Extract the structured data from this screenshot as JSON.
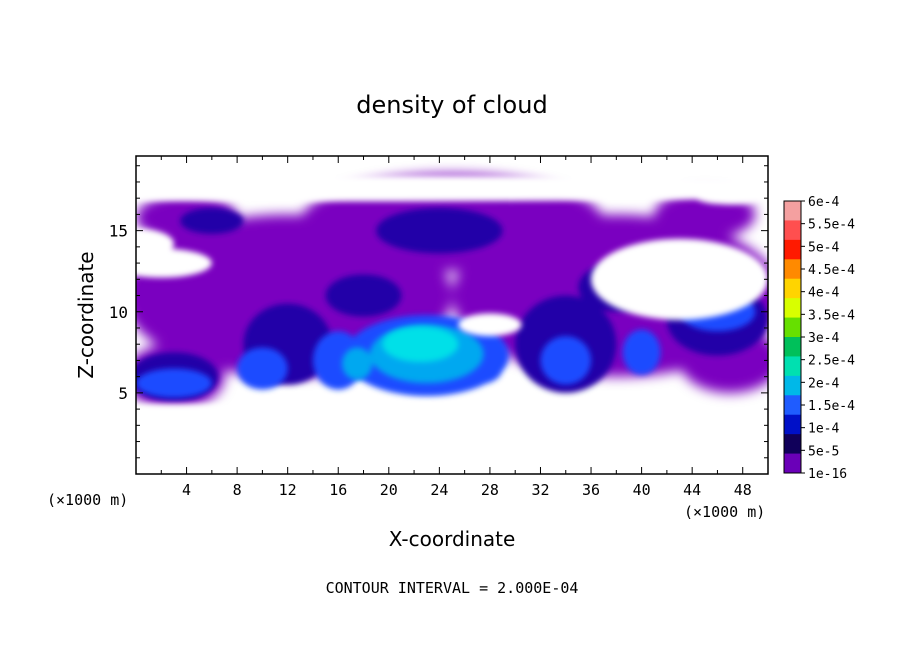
{
  "chart_data": {
    "type": "heatmap",
    "title": "density of cloud",
    "xlabel": "X-coordinate",
    "ylabel": "Z-coordinate",
    "x_unit_left": "(×1000 m)",
    "x_unit_right": "(×1000 m)",
    "x_ticks": [
      4,
      8,
      12,
      16,
      20,
      24,
      28,
      32,
      36,
      40,
      44,
      48
    ],
    "y_ticks": [
      5,
      10,
      15
    ],
    "xlim": [
      0,
      50
    ],
    "ylim": [
      0,
      19.6
    ],
    "footer": "CONTOUR INTERVAL = 2.000E-04",
    "colorbar": {
      "labels": [
        "6e-4",
        "5.5e-4",
        "5e-4",
        "4.5e-4",
        "4e-4",
        "3.5e-4",
        "3e-4",
        "2.5e-4",
        "2e-4",
        "1.5e-4",
        "1e-4",
        "5e-5",
        "1e-16"
      ],
      "colors": [
        "#f4a0a0",
        "#ff4f4f",
        "#ff1a00",
        "#ff8a00",
        "#ffd400",
        "#d8ff00",
        "#66e000",
        "#00c05a",
        "#00e0b0",
        "#00b8e8",
        "#1f5cff",
        "#0010c8",
        "#10005a",
        "#6a00b8"
      ]
    },
    "cloud_layers": [
      {
        "name": "1e-16",
        "color": "#7a00c0",
        "blobs": [
          [
            12,
            11,
            13,
            5
          ],
          [
            38,
            11,
            13,
            5
          ],
          [
            25,
            15.5,
            12,
            3
          ],
          [
            4,
            15.8,
            4,
            1.5
          ],
          [
            45,
            16,
            4,
            1.5
          ],
          [
            3,
            6,
            4,
            2
          ],
          [
            47,
            7,
            4,
            2
          ]
        ]
      },
      {
        "name": "5e-5",
        "color": "#2000a8",
        "blobs": [
          [
            24,
            15,
            5,
            1.4
          ],
          [
            6,
            15.6,
            2.5,
            0.8
          ],
          [
            12,
            8,
            3.5,
            2.5
          ],
          [
            34,
            8,
            4,
            3
          ],
          [
            46,
            9.5,
            4,
            2.2
          ],
          [
            3,
            6,
            3.5,
            1.5
          ],
          [
            38,
            11.5,
            3,
            1.5
          ],
          [
            18,
            11,
            3,
            1.3
          ]
        ]
      },
      {
        "name": "1e-4",
        "color": "#1f4cff",
        "blobs": [
          [
            23,
            7.3,
            6.5,
            2.5
          ],
          [
            16,
            7,
            2,
            1.8
          ],
          [
            10,
            6.5,
            2,
            1.3
          ],
          [
            34,
            7,
            2,
            1.5
          ],
          [
            40,
            7.5,
            1.5,
            1.4
          ],
          [
            46,
            10,
            3,
            1.2
          ],
          [
            3,
            5.6,
            3,
            0.9
          ],
          [
            27,
            6.5,
            2,
            1
          ]
        ]
      },
      {
        "name": "1.5e-4",
        "color": "#00a8f0",
        "blobs": [
          [
            23,
            7.4,
            4.5,
            1.8
          ],
          [
            17.5,
            6.8,
            1.2,
            1
          ]
        ]
      },
      {
        "name": "2e-4",
        "color": "#00e0e8",
        "blobs": [
          [
            22.5,
            8,
            3,
            1.1
          ]
        ]
      }
    ],
    "gaps": [
      [
        16,
        17.6,
        50,
        0.8
      ],
      [
        2,
        13,
        4,
        0.9
      ],
      [
        28,
        9.2,
        2.5,
        0.7
      ],
      [
        0,
        14.2,
        3,
        0.9
      ],
      [
        43,
        12,
        7,
        2.5
      ],
      [
        47,
        17.2,
        3,
        0.6
      ],
      [
        0,
        2.9,
        50,
        1.4
      ],
      [
        20,
        3.8,
        8,
        0.6
      ]
    ]
  }
}
